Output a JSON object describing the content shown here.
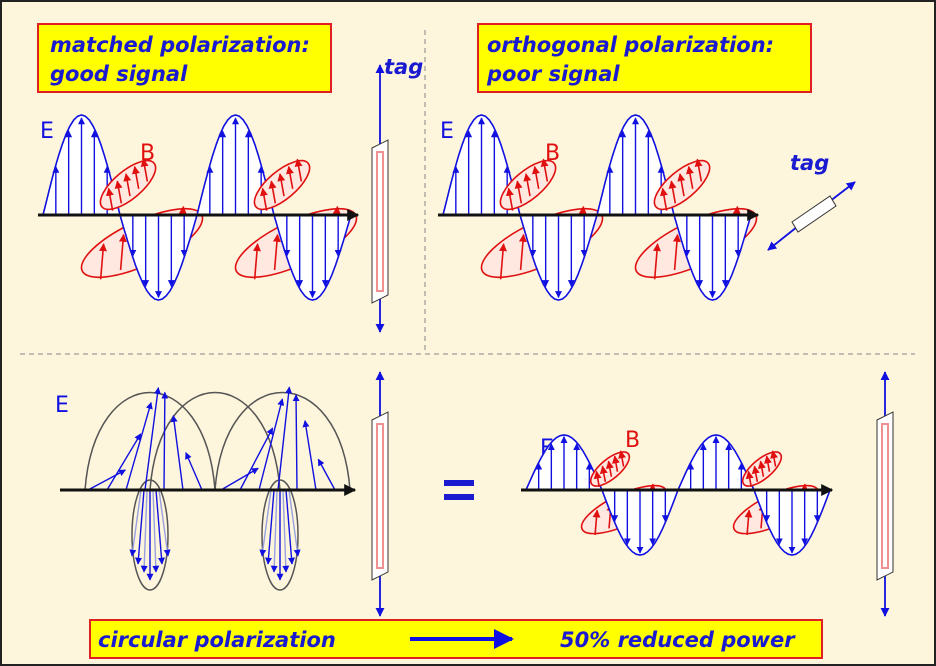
{
  "panels": [
    {
      "caption": [
        "matched polarization:",
        "good signal"
      ],
      "tag": "tag",
      "labels": [
        "E",
        "B"
      ]
    },
    {
      "caption": [
        "orthogonal polarization:",
        "poor signal"
      ],
      "tag": "tag",
      "labels": [
        "E",
        "B"
      ]
    },
    {
      "labels": [
        "E"
      ]
    },
    {
      "labels": [
        "E",
        "B"
      ]
    }
  ],
  "footer": {
    "left": "circular polarization",
    "right": "50% reduced power"
  }
}
